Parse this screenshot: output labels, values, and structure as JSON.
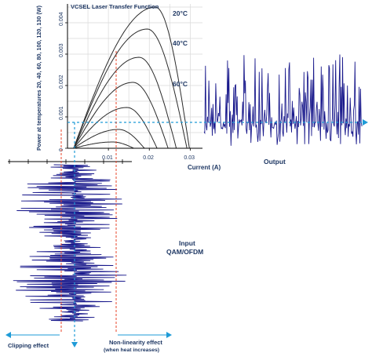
{
  "main_chart": {
    "title": "VCSEL Laser Transfer Function",
    "ylabel": "Power at temperatures 20, 40, 60, 80, 100, 120, 130 (W)",
    "xlabel": "Current (A)",
    "y_ticks": [
      "0",
      "0.001",
      "0.002",
      "0.003",
      "0.004"
    ],
    "x_ticks": [
      "0.01",
      "0.02",
      "0.03"
    ],
    "curve_labels": [
      "20°C",
      "40°C",
      "60°C"
    ]
  },
  "chart_data": {
    "type": "line",
    "title": "VCSEL Laser Transfer Function",
    "xlabel": "Current (A)",
    "ylabel": "Power at temperatures 20, 40, 60, 80, 100, 120, 130 (W)",
    "xlim": [
      0,
      0.033
    ],
    "ylim": [
      0,
      0.0046
    ],
    "grid": true,
    "series": [
      {
        "name": "20°C",
        "peak_x": 0.0215,
        "peak_y": 0.0045,
        "end_x": 0.0298
      },
      {
        "name": "40°C",
        "peak_x": 0.0195,
        "peak_y": 0.0038,
        "end_x": 0.0292
      },
      {
        "name": "60°C",
        "peak_x": 0.0175,
        "peak_y": 0.0029,
        "end_x": 0.0266
      },
      {
        "peak_x": 0.016,
        "peak_y": 0.0021,
        "end_x": 0.0246
      },
      {
        "peak_x": 0.0145,
        "peak_y": 0.0013,
        "end_x": 0.0219
      },
      {
        "peak_x": 0.0125,
        "peak_y": 0.0006,
        "end_x": 0.0188
      },
      {
        "peak_x": 0.011,
        "peak_y": 0.0002,
        "end_x": 0.0162
      }
    ],
    "threshold_x": 0.0015
  },
  "labels": {
    "output": "Output",
    "input_line1": "Input",
    "input_line2": "QAM/OFDM",
    "clipping": "Clipping effect",
    "nonlin_line1": "Non-linearity effect",
    "nonlin_line2": "(when heat increases)"
  },
  "colors": {
    "signal": "#1a1a8c",
    "bias_line": "#1e9bd7",
    "limit_line": "#e8452a",
    "curve": "#2b2b2b",
    "grid": "#d9d9d9"
  }
}
